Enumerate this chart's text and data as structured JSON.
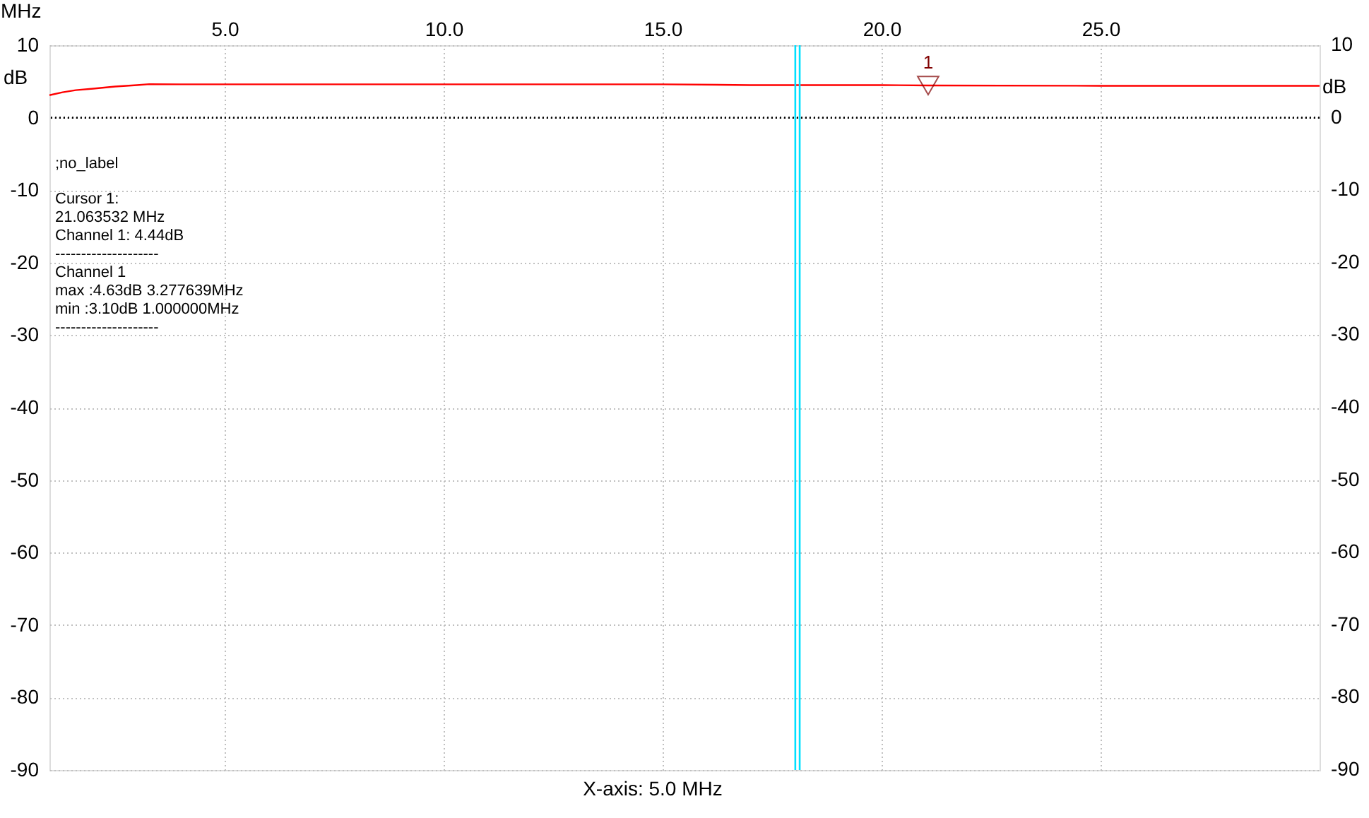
{
  "chart_data": {
    "type": "line",
    "xlabel": "MHz",
    "ylabel": "dB",
    "y2label": "dB",
    "x": [
      1.0,
      1.3,
      1.6,
      2.0,
      2.5,
      3.0,
      3.277639,
      4.0,
      6.0,
      10.0,
      15.0,
      17.0,
      18.0,
      20.0,
      21.063532,
      25.0,
      30.0
    ],
    "series": [
      {
        "color": "#ff0000",
        "values": [
          3.1,
          3.5,
          3.8,
          4.0,
          4.3,
          4.5,
          4.63,
          4.6,
          4.6,
          4.6,
          4.6,
          4.5,
          4.5,
          4.5,
          4.44,
          4.4,
          4.4
        ]
      }
    ],
    "xlim": [
      1,
      30
    ],
    "xticks": [
      {
        "value": 5,
        "label": "5.0"
      },
      {
        "value": 10,
        "label": "10.0"
      },
      {
        "value": 15,
        "label": "15.0"
      },
      {
        "value": 20,
        "label": "20.0"
      },
      {
        "value": 25,
        "label": "25.0"
      }
    ],
    "ylim": [
      -90,
      10
    ],
    "yticks": [
      -90,
      -80,
      -70,
      -60,
      -50,
      -40,
      -30,
      -20,
      -10,
      0,
      10
    ],
    "y2lim": [
      -90,
      10
    ],
    "y2ticks": [
      -90,
      -80,
      -70,
      -60,
      -50,
      -40,
      -30,
      -20,
      -10,
      0,
      10
    ],
    "grid": true,
    "line_style": "solid",
    "ref_lines": [
      {
        "axis": "y",
        "value": 0,
        "color": "#000000",
        "line_style": "dotted"
      },
      {
        "axis": "x",
        "value": 18.03,
        "color": "#00e0ff",
        "line_style": "solid"
      },
      {
        "axis": "x",
        "value": 18.13,
        "color": "#00e0ff",
        "line_style": "solid"
      }
    ],
    "annotations": [
      {
        "text": "1",
        "x": 21.063532,
        "y": 4.44
      },
      ";no_label",
      "Cursor 1:",
      "21.063532 MHz",
      "Channel 1: 4.44dB",
      "--------------------",
      "Channel 1",
      "max :4.63dB 3.277639MHz",
      "min :3.10dB 1.000000MHz",
      "--------------------",
      "X-axis: 5.0 MHz"
    ]
  }
}
